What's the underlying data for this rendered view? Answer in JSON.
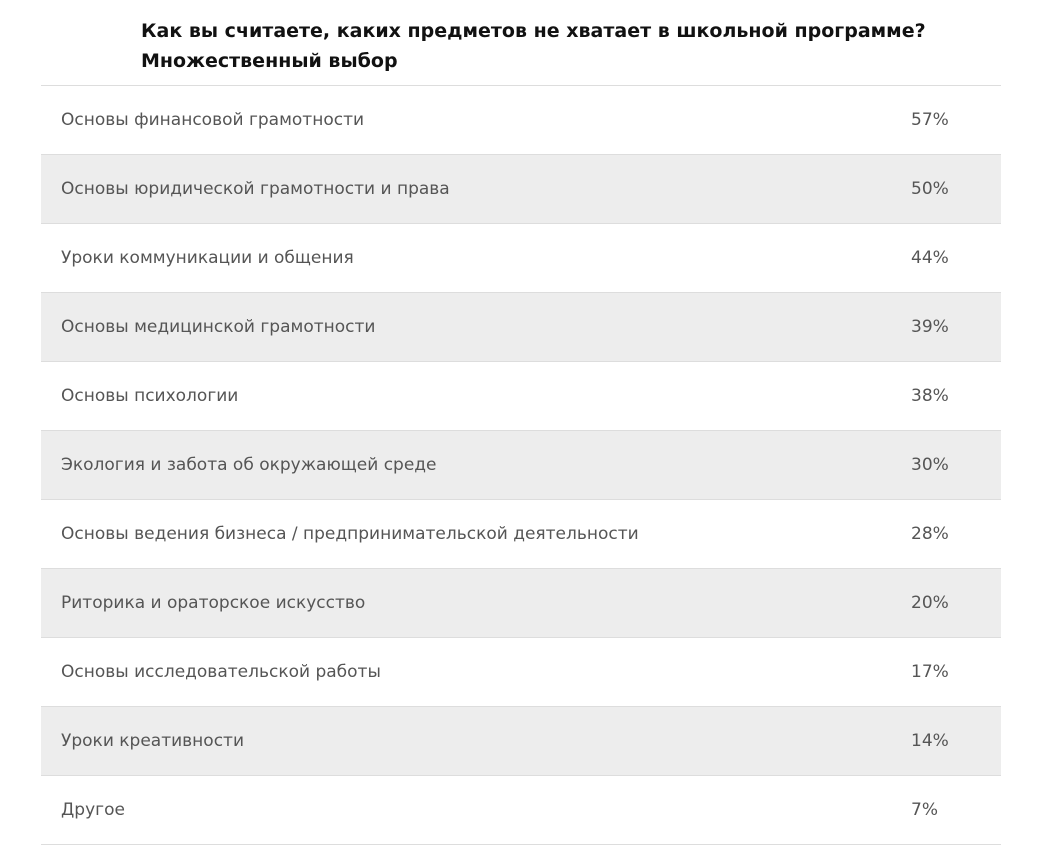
{
  "title": {
    "line1": "Как вы считаете, каких предметов не хватает в школьной программе?",
    "line2": "Множественный выбор"
  },
  "rows": [
    {
      "label": "Основы финансовой грамотности",
      "value": "57%"
    },
    {
      "label": "Основы юридической грамотности и права",
      "value": "50%"
    },
    {
      "label": "Уроки коммуникации и общения",
      "value": "44%"
    },
    {
      "label": "Основы медицинской грамотности",
      "value": "39%"
    },
    {
      "label": "Основы психологии",
      "value": "38%"
    },
    {
      "label": "Экология и забота об окружающей среде",
      "value": "30%"
    },
    {
      "label": "Основы ведения бизнеса / предпринимательской деятельности",
      "value": "28%"
    },
    {
      "label": "Риторика и ораторское искусство",
      "value": "20%"
    },
    {
      "label": "Основы исследовательской работы",
      "value": "17%"
    },
    {
      "label": "Уроки креативности",
      "value": "14%"
    },
    {
      "label": "Другое",
      "value": "7%"
    }
  ]
}
